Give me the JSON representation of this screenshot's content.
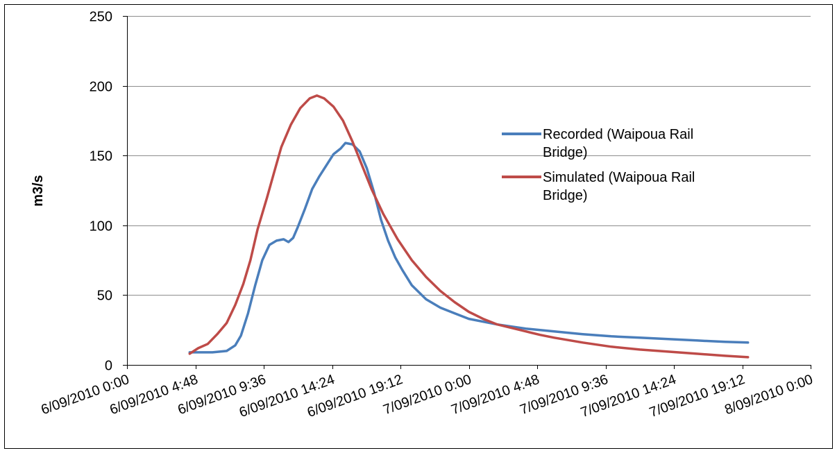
{
  "chart_data": {
    "type": "line",
    "title": "",
    "xlabel": "",
    "ylabel": "m3/s",
    "ylim": [
      0,
      250
    ],
    "yticks": [
      0,
      50,
      100,
      150,
      200,
      250
    ],
    "xlim": [
      "2010-09-06T00:00",
      "2010-09-08T00:00"
    ],
    "xticks": [
      {
        "t": "2010-09-06T00:00",
        "label": "6/09/2010 0:00"
      },
      {
        "t": "2010-09-06T04:48",
        "label": "6/09/2010 4:48"
      },
      {
        "t": "2010-09-06T09:36",
        "label": "6/09/2010 9:36"
      },
      {
        "t": "2010-09-06T14:24",
        "label": "6/09/2010 14:24"
      },
      {
        "t": "2010-09-06T19:12",
        "label": "6/09/2010 19:12"
      },
      {
        "t": "2010-09-07T00:00",
        "label": "7/09/2010 0:00"
      },
      {
        "t": "2010-09-07T04:48",
        "label": "7/09/2010 4:48"
      },
      {
        "t": "2010-09-07T09:36",
        "label": "7/09/2010 9:36"
      },
      {
        "t": "2010-09-07T14:24",
        "label": "7/09/2010 14:24"
      },
      {
        "t": "2010-09-07T19:12",
        "label": "7/09/2010 19:12"
      },
      {
        "t": "2010-09-08T00:00",
        "label": "8/09/2010 0:00"
      }
    ],
    "grid": "horizontal",
    "legend_position": "right",
    "legend_lines": [
      [
        "Recorded (Waipoua Rail",
        "Bridge)"
      ],
      [
        "Simulated (Waipoua Rail",
        "Bridge)"
      ]
    ],
    "series": [
      {
        "name": "Recorded (Waipoua Rail Bridge)",
        "color": "#4A7EBB",
        "points": [
          [
            "2010-09-06T04:24",
            9
          ],
          [
            "2010-09-06T05:00",
            9
          ],
          [
            "2010-09-06T06:00",
            9
          ],
          [
            "2010-09-06T07:00",
            10
          ],
          [
            "2010-09-06T07:36",
            14
          ],
          [
            "2010-09-06T08:00",
            21
          ],
          [
            "2010-09-06T08:30",
            37
          ],
          [
            "2010-09-06T09:00",
            57
          ],
          [
            "2010-09-06T09:30",
            75
          ],
          [
            "2010-09-06T10:00",
            86
          ],
          [
            "2010-09-06T10:30",
            89
          ],
          [
            "2010-09-06T11:00",
            90
          ],
          [
            "2010-09-06T11:20",
            88
          ],
          [
            "2010-09-06T11:40",
            91
          ],
          [
            "2010-09-06T12:00",
            99
          ],
          [
            "2010-09-06T12:30",
            112
          ],
          [
            "2010-09-06T13:00",
            126
          ],
          [
            "2010-09-06T13:30",
            135
          ],
          [
            "2010-09-06T14:00",
            143
          ],
          [
            "2010-09-06T14:30",
            151
          ],
          [
            "2010-09-06T15:00",
            155
          ],
          [
            "2010-09-06T15:20",
            159
          ],
          [
            "2010-09-06T15:50",
            158
          ],
          [
            "2010-09-06T16:20",
            153
          ],
          [
            "2010-09-06T16:50",
            141
          ],
          [
            "2010-09-06T17:20",
            124
          ],
          [
            "2010-09-06T17:50",
            104
          ],
          [
            "2010-09-06T18:20",
            89
          ],
          [
            "2010-09-06T18:50",
            77
          ],
          [
            "2010-09-06T19:20",
            68
          ],
          [
            "2010-09-06T20:00",
            57
          ],
          [
            "2010-09-06T21:00",
            47
          ],
          [
            "2010-09-06T22:00",
            41
          ],
          [
            "2010-09-06T23:00",
            37
          ],
          [
            "2010-09-07T00:00",
            33
          ],
          [
            "2010-09-07T02:00",
            29
          ],
          [
            "2010-09-07T04:00",
            26
          ],
          [
            "2010-09-07T06:00",
            24
          ],
          [
            "2010-09-07T08:00",
            22
          ],
          [
            "2010-09-07T10:00",
            20.5
          ],
          [
            "2010-09-07T12:00",
            19.5
          ],
          [
            "2010-09-07T14:00",
            18.5
          ],
          [
            "2010-09-07T16:00",
            17.5
          ],
          [
            "2010-09-07T18:00",
            16.5
          ],
          [
            "2010-09-07T19:36",
            16
          ]
        ]
      },
      {
        "name": "Simulated (Waipoua Rail Bridge)",
        "color": "#BE4B48",
        "points": [
          [
            "2010-09-06T04:24",
            8
          ],
          [
            "2010-09-06T05:00",
            12
          ],
          [
            "2010-09-06T05:40",
            15
          ],
          [
            "2010-09-06T06:20",
            22
          ],
          [
            "2010-09-06T07:00",
            30
          ],
          [
            "2010-09-06T07:36",
            43
          ],
          [
            "2010-09-06T08:10",
            58
          ],
          [
            "2010-09-06T08:40",
            75
          ],
          [
            "2010-09-06T09:10",
            97
          ],
          [
            "2010-09-06T09:50",
            120
          ],
          [
            "2010-09-06T10:20",
            138
          ],
          [
            "2010-09-06T10:50",
            156
          ],
          [
            "2010-09-06T11:30",
            172
          ],
          [
            "2010-09-06T12:10",
            184
          ],
          [
            "2010-09-06T12:50",
            191
          ],
          [
            "2010-09-06T13:20",
            193
          ],
          [
            "2010-09-06T13:50",
            191
          ],
          [
            "2010-09-06T14:30",
            185
          ],
          [
            "2010-09-06T15:10",
            175
          ],
          [
            "2010-09-06T15:50",
            160
          ],
          [
            "2010-09-06T16:30",
            143
          ],
          [
            "2010-09-06T17:10",
            126
          ],
          [
            "2010-09-06T18:00",
            108
          ],
          [
            "2010-09-06T19:00",
            90
          ],
          [
            "2010-09-06T20:00",
            75
          ],
          [
            "2010-09-06T21:00",
            63
          ],
          [
            "2010-09-06T22:00",
            53
          ],
          [
            "2010-09-06T23:00",
            45
          ],
          [
            "2010-09-07T00:00",
            38
          ],
          [
            "2010-09-07T01:00",
            33
          ],
          [
            "2010-09-07T02:00",
            29
          ],
          [
            "2010-09-07T03:00",
            26.5
          ],
          [
            "2010-09-07T04:00",
            24
          ],
          [
            "2010-09-07T05:00",
            21.5
          ],
          [
            "2010-09-07T06:00",
            19.5
          ],
          [
            "2010-09-07T08:00",
            16
          ],
          [
            "2010-09-07T10:00",
            13
          ],
          [
            "2010-09-07T12:00",
            11
          ],
          [
            "2010-09-07T14:00",
            9.5
          ],
          [
            "2010-09-07T16:00",
            8
          ],
          [
            "2010-09-07T18:00",
            6.5
          ],
          [
            "2010-09-07T19:36",
            5.5
          ]
        ]
      }
    ]
  }
}
